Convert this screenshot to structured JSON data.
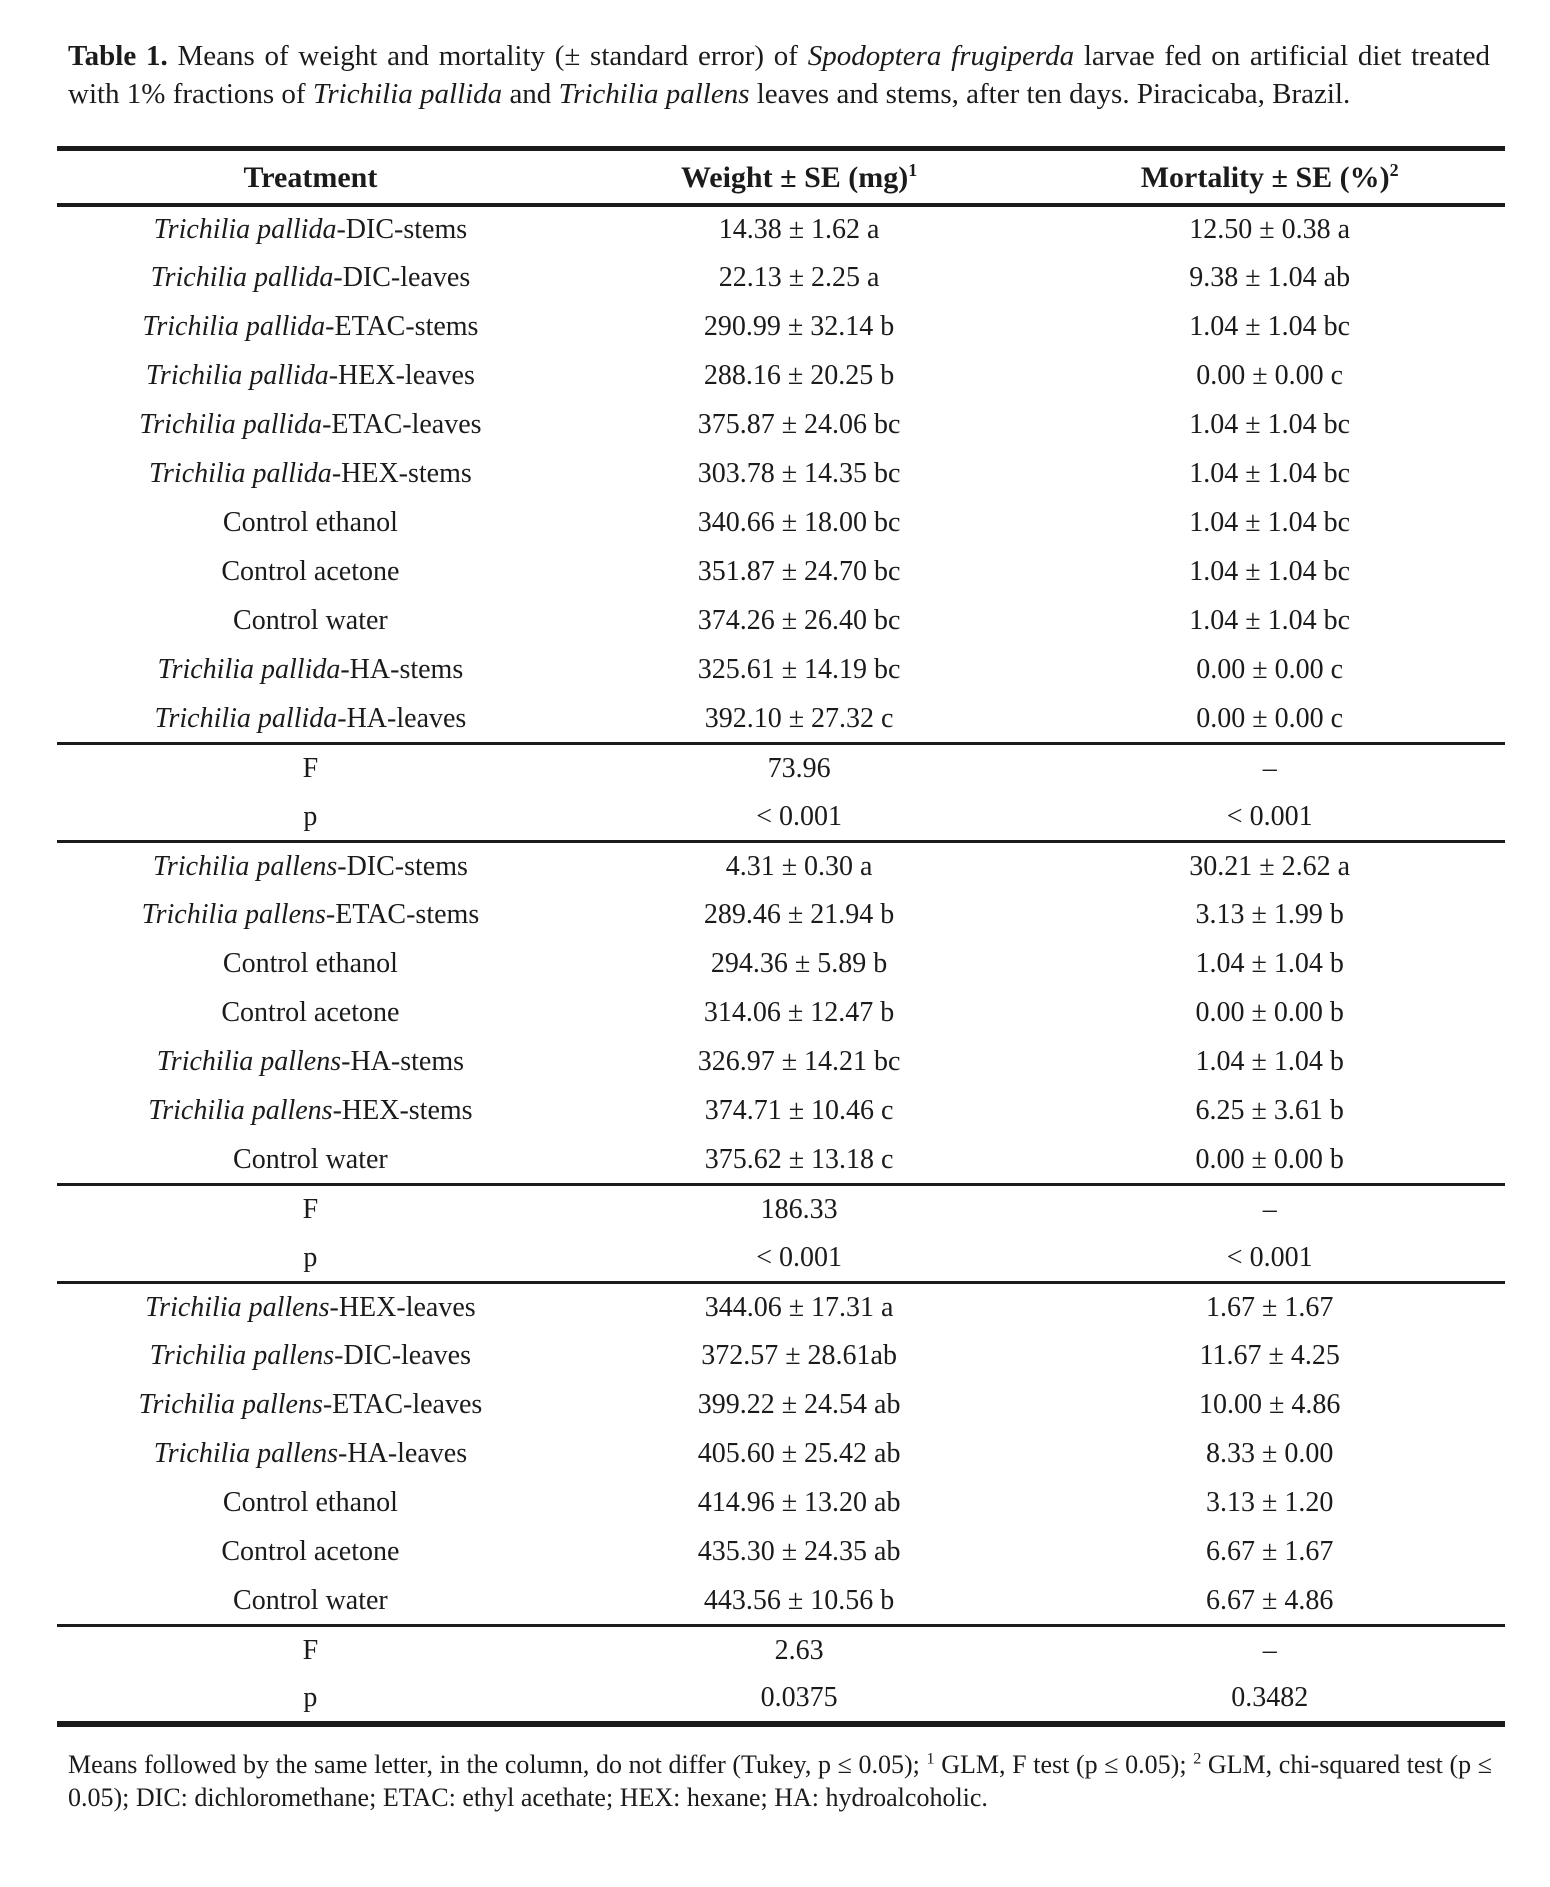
{
  "colors": {
    "background": "#ffffff",
    "text": "#1b1b1b",
    "rule": "#1b1b1b"
  },
  "caption": {
    "segments": [
      {
        "t": "Table 1.",
        "b": true
      },
      {
        "t": " Means of weight and mortality (± standard error) of "
      },
      {
        "t": "Spodoptera frugiperda",
        "i": true
      },
      {
        "t": " larvae fed on artificial diet treated with 1% fractions of "
      },
      {
        "t": "Trichilia pallida",
        "i": true
      },
      {
        "t": " and "
      },
      {
        "t": "Trichilia pallens",
        "i": true
      },
      {
        "t": " leaves and stems, after ten days. Piracicaba, Brazil."
      }
    ]
  },
  "table": {
    "headers": [
      {
        "label": "Treatment",
        "sup": ""
      },
      {
        "label": "Weight ± SE (mg)",
        "sup": "1"
      },
      {
        "label": "Mortality ± SE (%)",
        "sup": "2"
      }
    ],
    "sections": [
      {
        "rows": [
          {
            "treatment": [
              {
                "t": "Trichilia pallida",
                "i": true
              },
              {
                "t": "-DIC-stems"
              }
            ],
            "weight": "14.38 ± 1.62 a",
            "mortality": "12.50 ± 0.38 a"
          },
          {
            "treatment": [
              {
                "t": "Trichilia pallida",
                "i": true
              },
              {
                "t": "-DIC-leaves"
              }
            ],
            "weight": "22.13 ± 2.25 a",
            "mortality": "9.38 ± 1.04 ab"
          },
          {
            "treatment": [
              {
                "t": "Trichilia pallida",
                "i": true
              },
              {
                "t": "-ETAC-stems"
              }
            ],
            "weight": "290.99 ± 32.14 b",
            "mortality": "1.04 ± 1.04 bc"
          },
          {
            "treatment": [
              {
                "t": "Trichilia pallida",
                "i": true
              },
              {
                "t": "-HEX-leaves"
              }
            ],
            "weight": "288.16 ± 20.25 b",
            "mortality": "0.00 ± 0.00 c"
          },
          {
            "treatment": [
              {
                "t": "Trichilia pallida",
                "i": true
              },
              {
                "t": "-ETAC-leaves"
              }
            ],
            "weight": "375.87 ± 24.06 bc",
            "mortality": "1.04 ± 1.04 bc"
          },
          {
            "treatment": [
              {
                "t": "Trichilia pallida",
                "i": true
              },
              {
                "t": "-HEX-stems"
              }
            ],
            "weight": "303.78 ± 14.35 bc",
            "mortality": "1.04 ± 1.04 bc"
          },
          {
            "treatment": [
              {
                "t": "Control ethanol"
              }
            ],
            "weight": "340.66 ± 18.00 bc",
            "mortality": "1.04 ± 1.04 bc"
          },
          {
            "treatment": [
              {
                "t": "Control acetone"
              }
            ],
            "weight": "351.87 ± 24.70 bc",
            "mortality": "1.04 ± 1.04 bc"
          },
          {
            "treatment": [
              {
                "t": "Control water"
              }
            ],
            "weight": "374.26 ± 26.40 bc",
            "mortality": "1.04 ± 1.04 bc"
          },
          {
            "treatment": [
              {
                "t": "Trichilia pallida",
                "i": true
              },
              {
                "t": "-HA-stems"
              }
            ],
            "weight": "325.61 ± 14.19 bc",
            "mortality": "0.00 ± 0.00 c"
          },
          {
            "treatment": [
              {
                "t": "Trichilia pallida",
                "i": true
              },
              {
                "t": "-HA-leaves"
              }
            ],
            "weight": "392.10 ± 27.32 c",
            "mortality": "0.00 ± 0.00 c"
          }
        ],
        "stats": [
          {
            "label": "F",
            "weight": "73.96",
            "mortality": "–"
          },
          {
            "label": "p",
            "weight": "< 0.001",
            "mortality": "< 0.001"
          }
        ]
      },
      {
        "rows": [
          {
            "treatment": [
              {
                "t": "Trichilia pallens",
                "i": true
              },
              {
                "t": "-DIC-stems"
              }
            ],
            "weight": "4.31 ±  0.30 a",
            "mortality": "30.21 ± 2.62 a"
          },
          {
            "treatment": [
              {
                "t": "Trichilia pallens",
                "i": true
              },
              {
                "t": "-ETAC-stems"
              }
            ],
            "weight": "289.46 ± 21.94 b",
            "mortality": "3.13 ± 1.99 b"
          },
          {
            "treatment": [
              {
                "t": "Control ethanol"
              }
            ],
            "weight": "294.36 ± 5.89 b",
            "mortality": "1.04 ± 1.04 b"
          },
          {
            "treatment": [
              {
                "t": "Control acetone"
              }
            ],
            "weight": "314.06 ± 12.47 b",
            "mortality": "0.00 ± 0.00 b"
          },
          {
            "treatment": [
              {
                "t": "Trichilia pallens",
                "i": true
              },
              {
                "t": "-HA-stems"
              }
            ],
            "weight": "326.97 ± 14.21 bc",
            "mortality": "1.04 ± 1.04 b"
          },
          {
            "treatment": [
              {
                "t": "Trichilia pallens",
                "i": true
              },
              {
                "t": "-HEX-stems"
              }
            ],
            "weight": "374.71 ± 10.46 c",
            "mortality": "6.25 ± 3.61 b"
          },
          {
            "treatment": [
              {
                "t": "Control water"
              }
            ],
            "weight": "375.62 ± 13.18 c",
            "mortality": "0.00 ± 0.00 b"
          }
        ],
        "stats": [
          {
            "label": "F",
            "weight": "186.33",
            "mortality": "–"
          },
          {
            "label": "p",
            "weight": "< 0.001",
            "mortality": "< 0.001"
          }
        ]
      },
      {
        "rows": [
          {
            "treatment": [
              {
                "t": "Trichilia pallens",
                "i": true
              },
              {
                "t": "-HEX-leaves"
              }
            ],
            "weight": "344.06 ± 17.31 a",
            "mortality": "1.67 ± 1.67"
          },
          {
            "treatment": [
              {
                "t": "Trichilia pallens",
                "i": true
              },
              {
                "t": "-DIC-leaves"
              }
            ],
            "weight": "372.57 ± 28.61ab",
            "mortality": "11.67 ± 4.25"
          },
          {
            "treatment": [
              {
                "t": "Trichilia pallens",
                "i": true
              },
              {
                "t": "-ETAC-leaves"
              }
            ],
            "weight": "399.22 ± 24.54 ab",
            "mortality": "10.00 ± 4.86"
          },
          {
            "treatment": [
              {
                "t": "Trichilia pallens",
                "i": true
              },
              {
                "t": "-HA-leaves"
              }
            ],
            "weight": "405.60 ± 25.42 ab",
            "mortality": "8.33 ± 0.00"
          },
          {
            "treatment": [
              {
                "t": "Control ethanol"
              }
            ],
            "weight": "414.96 ± 13.20 ab",
            "mortality": "3.13 ± 1.20"
          },
          {
            "treatment": [
              {
                "t": "Control acetone"
              }
            ],
            "weight": "435.30 ± 24.35 ab",
            "mortality": "6.67 ± 1.67"
          },
          {
            "treatment": [
              {
                "t": "Control water"
              }
            ],
            "weight": "443.56 ± 10.56 b",
            "mortality": "6.67 ± 4.86"
          }
        ],
        "stats": [
          {
            "label": "F",
            "weight": "2.63",
            "mortality": "–"
          },
          {
            "label": "p",
            "weight": "0.0375",
            "mortality": "0.3482"
          }
        ]
      }
    ]
  },
  "footnote": {
    "segments": [
      {
        "t": "Means followed by the same letter, in the column, do not differ (Tukey, p ≤ 0.05); "
      },
      {
        "t": "1",
        "sup": true
      },
      {
        "t": " GLM, F test (p ≤ 0.05); "
      },
      {
        "t": "2",
        "sup": true
      },
      {
        "t": " GLM, chi-squared test (p ≤ 0.05); DIC: dichloromethane; ETAC: ethyl acethate; HEX: hexane; HA: hydroalcoholic."
      }
    ]
  }
}
